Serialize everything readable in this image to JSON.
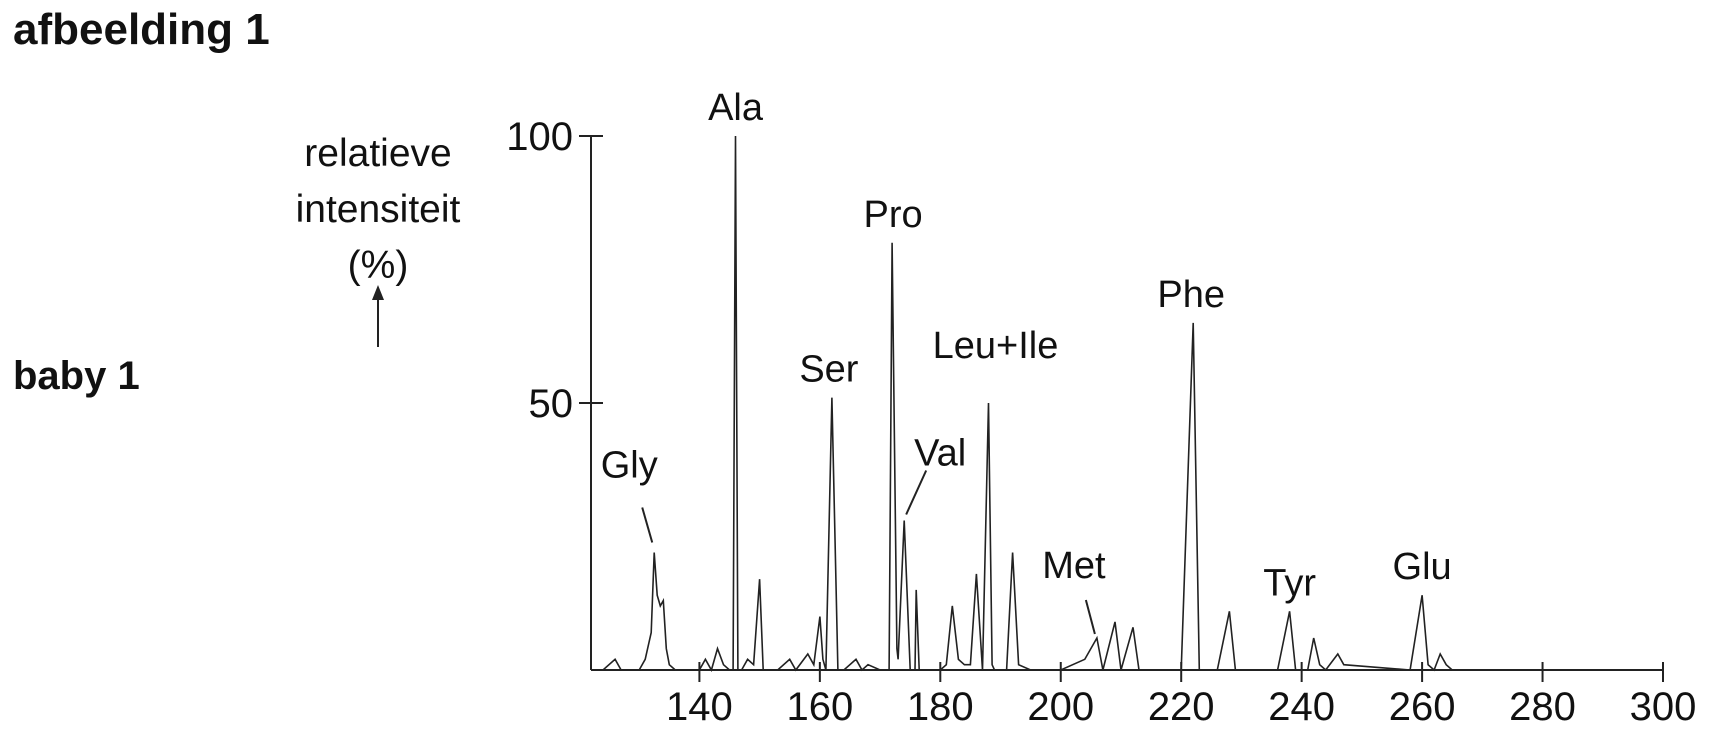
{
  "page": {
    "title": "afbeelding 1",
    "panel_label": "baby 1"
  },
  "chart_data": {
    "type": "line",
    "title": "",
    "xlabel": "",
    "ylabel": [
      "relatieve",
      "intensiteit",
      "(%)"
    ],
    "xlim": [
      122,
      300
    ],
    "ylim": [
      0,
      100
    ],
    "x_ticks": [
      140,
      160,
      180,
      200,
      220,
      240,
      260,
      280,
      300
    ],
    "y_ticks": [
      50,
      100
    ],
    "grid": false,
    "line_color": "#222222",
    "series": [
      {
        "points": [
          [
            122,
            0
          ],
          [
            124,
            0
          ],
          [
            126,
            2
          ],
          [
            127,
            0
          ],
          [
            130,
            0
          ],
          [
            131,
            2
          ],
          [
            132,
            7
          ],
          [
            132.5,
            22
          ],
          [
            133,
            14
          ],
          [
            133.5,
            12
          ],
          [
            134,
            13
          ],
          [
            134.5,
            4
          ],
          [
            135,
            1
          ],
          [
            136,
            0
          ],
          [
            140,
            0
          ],
          [
            141,
            2
          ],
          [
            142,
            0
          ],
          [
            143,
            4
          ],
          [
            144,
            1
          ],
          [
            145,
            0
          ],
          [
            145.6,
            0
          ],
          [
            146,
            100
          ],
          [
            146.4,
            0
          ],
          [
            147,
            0
          ],
          [
            148,
            2
          ],
          [
            149,
            1
          ],
          [
            150,
            17
          ],
          [
            150.6,
            0
          ],
          [
            151,
            0
          ],
          [
            153,
            0
          ],
          [
            155,
            2
          ],
          [
            156,
            0
          ],
          [
            158,
            3
          ],
          [
            159,
            1
          ],
          [
            160,
            10
          ],
          [
            160.5,
            2
          ],
          [
            161,
            0
          ],
          [
            162,
            51
          ],
          [
            163,
            0
          ],
          [
            164,
            0
          ],
          [
            166,
            2
          ],
          [
            167,
            0
          ],
          [
            168,
            1
          ],
          [
            170,
            0
          ],
          [
            171.5,
            0
          ],
          [
            172,
            80
          ],
          [
            172.8,
            4
          ],
          [
            173,
            2
          ],
          [
            174,
            28
          ],
          [
            175,
            0
          ],
          [
            175.8,
            0
          ],
          [
            176,
            15
          ],
          [
            176.5,
            0
          ],
          [
            178,
            0
          ],
          [
            180,
            0
          ],
          [
            181,
            1
          ],
          [
            182,
            12
          ],
          [
            183,
            2
          ],
          [
            184,
            1
          ],
          [
            185,
            1
          ],
          [
            186,
            18
          ],
          [
            187,
            0
          ],
          [
            188,
            50
          ],
          [
            188.6,
            1
          ],
          [
            189,
            0
          ],
          [
            191,
            0
          ],
          [
            192,
            22
          ],
          [
            193,
            1
          ],
          [
            195,
            0
          ],
          [
            200,
            0
          ],
          [
            204,
            2
          ],
          [
            206,
            6
          ],
          [
            207,
            0
          ],
          [
            209,
            9
          ],
          [
            210,
            0
          ],
          [
            212,
            8
          ],
          [
            213,
            0
          ],
          [
            215,
            0
          ],
          [
            217,
            0
          ],
          [
            220,
            0
          ],
          [
            222,
            65
          ],
          [
            223,
            0
          ],
          [
            226,
            0
          ],
          [
            228,
            11
          ],
          [
            229,
            0
          ],
          [
            236,
            0
          ],
          [
            238,
            11
          ],
          [
            239,
            0
          ],
          [
            241,
            0
          ],
          [
            242,
            6
          ],
          [
            243,
            1
          ],
          [
            244,
            0
          ],
          [
            246,
            3
          ],
          [
            247,
            1
          ],
          [
            258,
            0
          ],
          [
            260,
            14
          ],
          [
            261,
            1
          ],
          [
            262,
            0
          ],
          [
            263,
            3
          ],
          [
            264,
            1
          ],
          [
            265,
            0
          ],
          [
            290,
            0
          ]
        ]
      }
    ],
    "peak_labels": [
      {
        "text": "Gly",
        "x": 132.5,
        "y": 22,
        "leader": true
      },
      {
        "text": "Ala",
        "x": 146,
        "y": 100,
        "leader": false
      },
      {
        "text": "Ser",
        "x": 162,
        "y": 51,
        "leader": false
      },
      {
        "text": "Pro",
        "x": 172,
        "y": 80,
        "leader": false
      },
      {
        "text": "Val",
        "x": 174,
        "y": 28,
        "leader": true
      },
      {
        "text": "Leu+Ile",
        "x": 188,
        "y": 50,
        "leader": false
      },
      {
        "text": "Met",
        "x": 206,
        "y": 6,
        "leader": true
      },
      {
        "text": "Phe",
        "x": 222,
        "y": 65,
        "leader": false
      },
      {
        "text": "Tyr",
        "x": 238,
        "y": 11,
        "leader": false
      },
      {
        "text": "Glu",
        "x": 260,
        "y": 14,
        "leader": false
      }
    ]
  }
}
